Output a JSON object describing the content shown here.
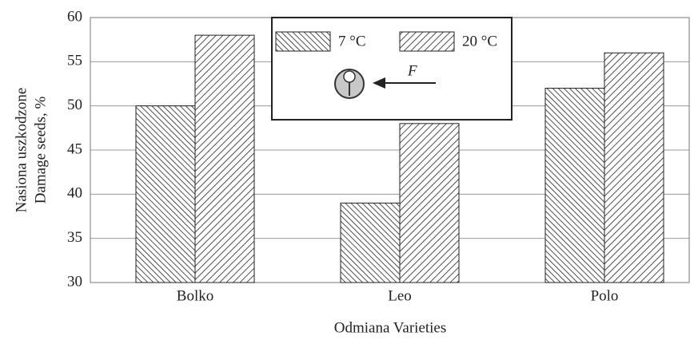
{
  "chart_data": {
    "type": "bar",
    "categories": [
      "Bolko",
      "Leo",
      "Polo"
    ],
    "series": [
      {
        "name": "7 °C",
        "color": "#222222",
        "values": [
          50,
          39,
          52
        ]
      },
      {
        "name": "20 °C",
        "color": "#222222",
        "values": [
          58,
          48,
          56
        ]
      }
    ],
    "ylim": [
      30,
      60
    ],
    "yticks": [
      30,
      35,
      40,
      45,
      50,
      55,
      60
    ],
    "grid": true,
    "y_label": [
      "Nasiona uszkodzone",
      "Damage seeds, %"
    ],
    "x_label": "Odmiana Varieties",
    "annotation": "F"
  }
}
